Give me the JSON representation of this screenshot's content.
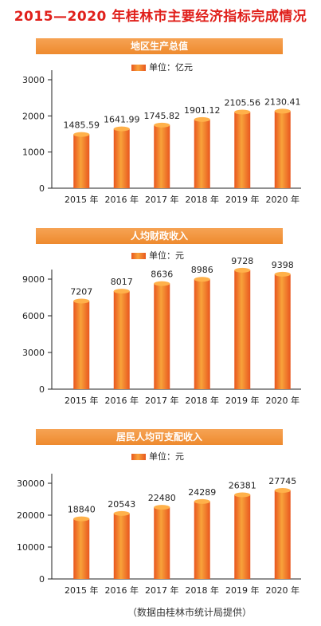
{
  "title": "2015—2020 年桂林市主要经济指标完成情况",
  "source_note": "（数据由桂林市统计局提供）",
  "colors": {
    "title": "#e0201b",
    "band": "#ee8a2e",
    "bar_light": "#f8a23a",
    "bar_dark": "#e8571f",
    "bar_top": "#ffb14a"
  },
  "chart_data": [
    {
      "type": "bar",
      "title": "地区生产总值",
      "legend": "单位：亿元",
      "categories": [
        "2015 年",
        "2016 年",
        "2017 年",
        "2018 年",
        "2019 年",
        "2020 年"
      ],
      "values": [
        1485.59,
        1641.99,
        1745.82,
        1901.12,
        2105.56,
        2130.41
      ],
      "value_labels": [
        "1485.59",
        "1641.99",
        "1745.82",
        "1901.12",
        "2105.56",
        "2130.41"
      ],
      "yticks": [
        0,
        1000,
        2000,
        3000
      ],
      "ylim": [
        0,
        3000
      ]
    },
    {
      "type": "bar",
      "title": "人均财政收入",
      "legend": "单位：元",
      "categories": [
        "2015 年",
        "2016 年",
        "2017 年",
        "2018 年",
        "2019 年",
        "2020 年"
      ],
      "values": [
        7207,
        8017,
        8636,
        8986,
        9728,
        9398
      ],
      "value_labels": [
        "7207",
        "8017",
        "8636",
        "8986",
        "9728",
        "9398"
      ],
      "yticks": [
        0,
        3000,
        6000,
        9000
      ],
      "ylim": [
        0,
        9000
      ]
    },
    {
      "type": "bar",
      "title": "居民人均可支配收入",
      "legend": "单位：元",
      "categories": [
        "2015 年",
        "2016 年",
        "2017 年",
        "2018 年",
        "2019 年",
        "2020 年"
      ],
      "values": [
        18840,
        20543,
        22480,
        24289,
        26381,
        27745
      ],
      "value_labels": [
        "18840",
        "20543",
        "22480",
        "24289",
        "26381",
        "27745"
      ],
      "yticks": [
        0,
        10000,
        20000,
        30000
      ],
      "ylim": [
        0,
        30000
      ]
    }
  ]
}
